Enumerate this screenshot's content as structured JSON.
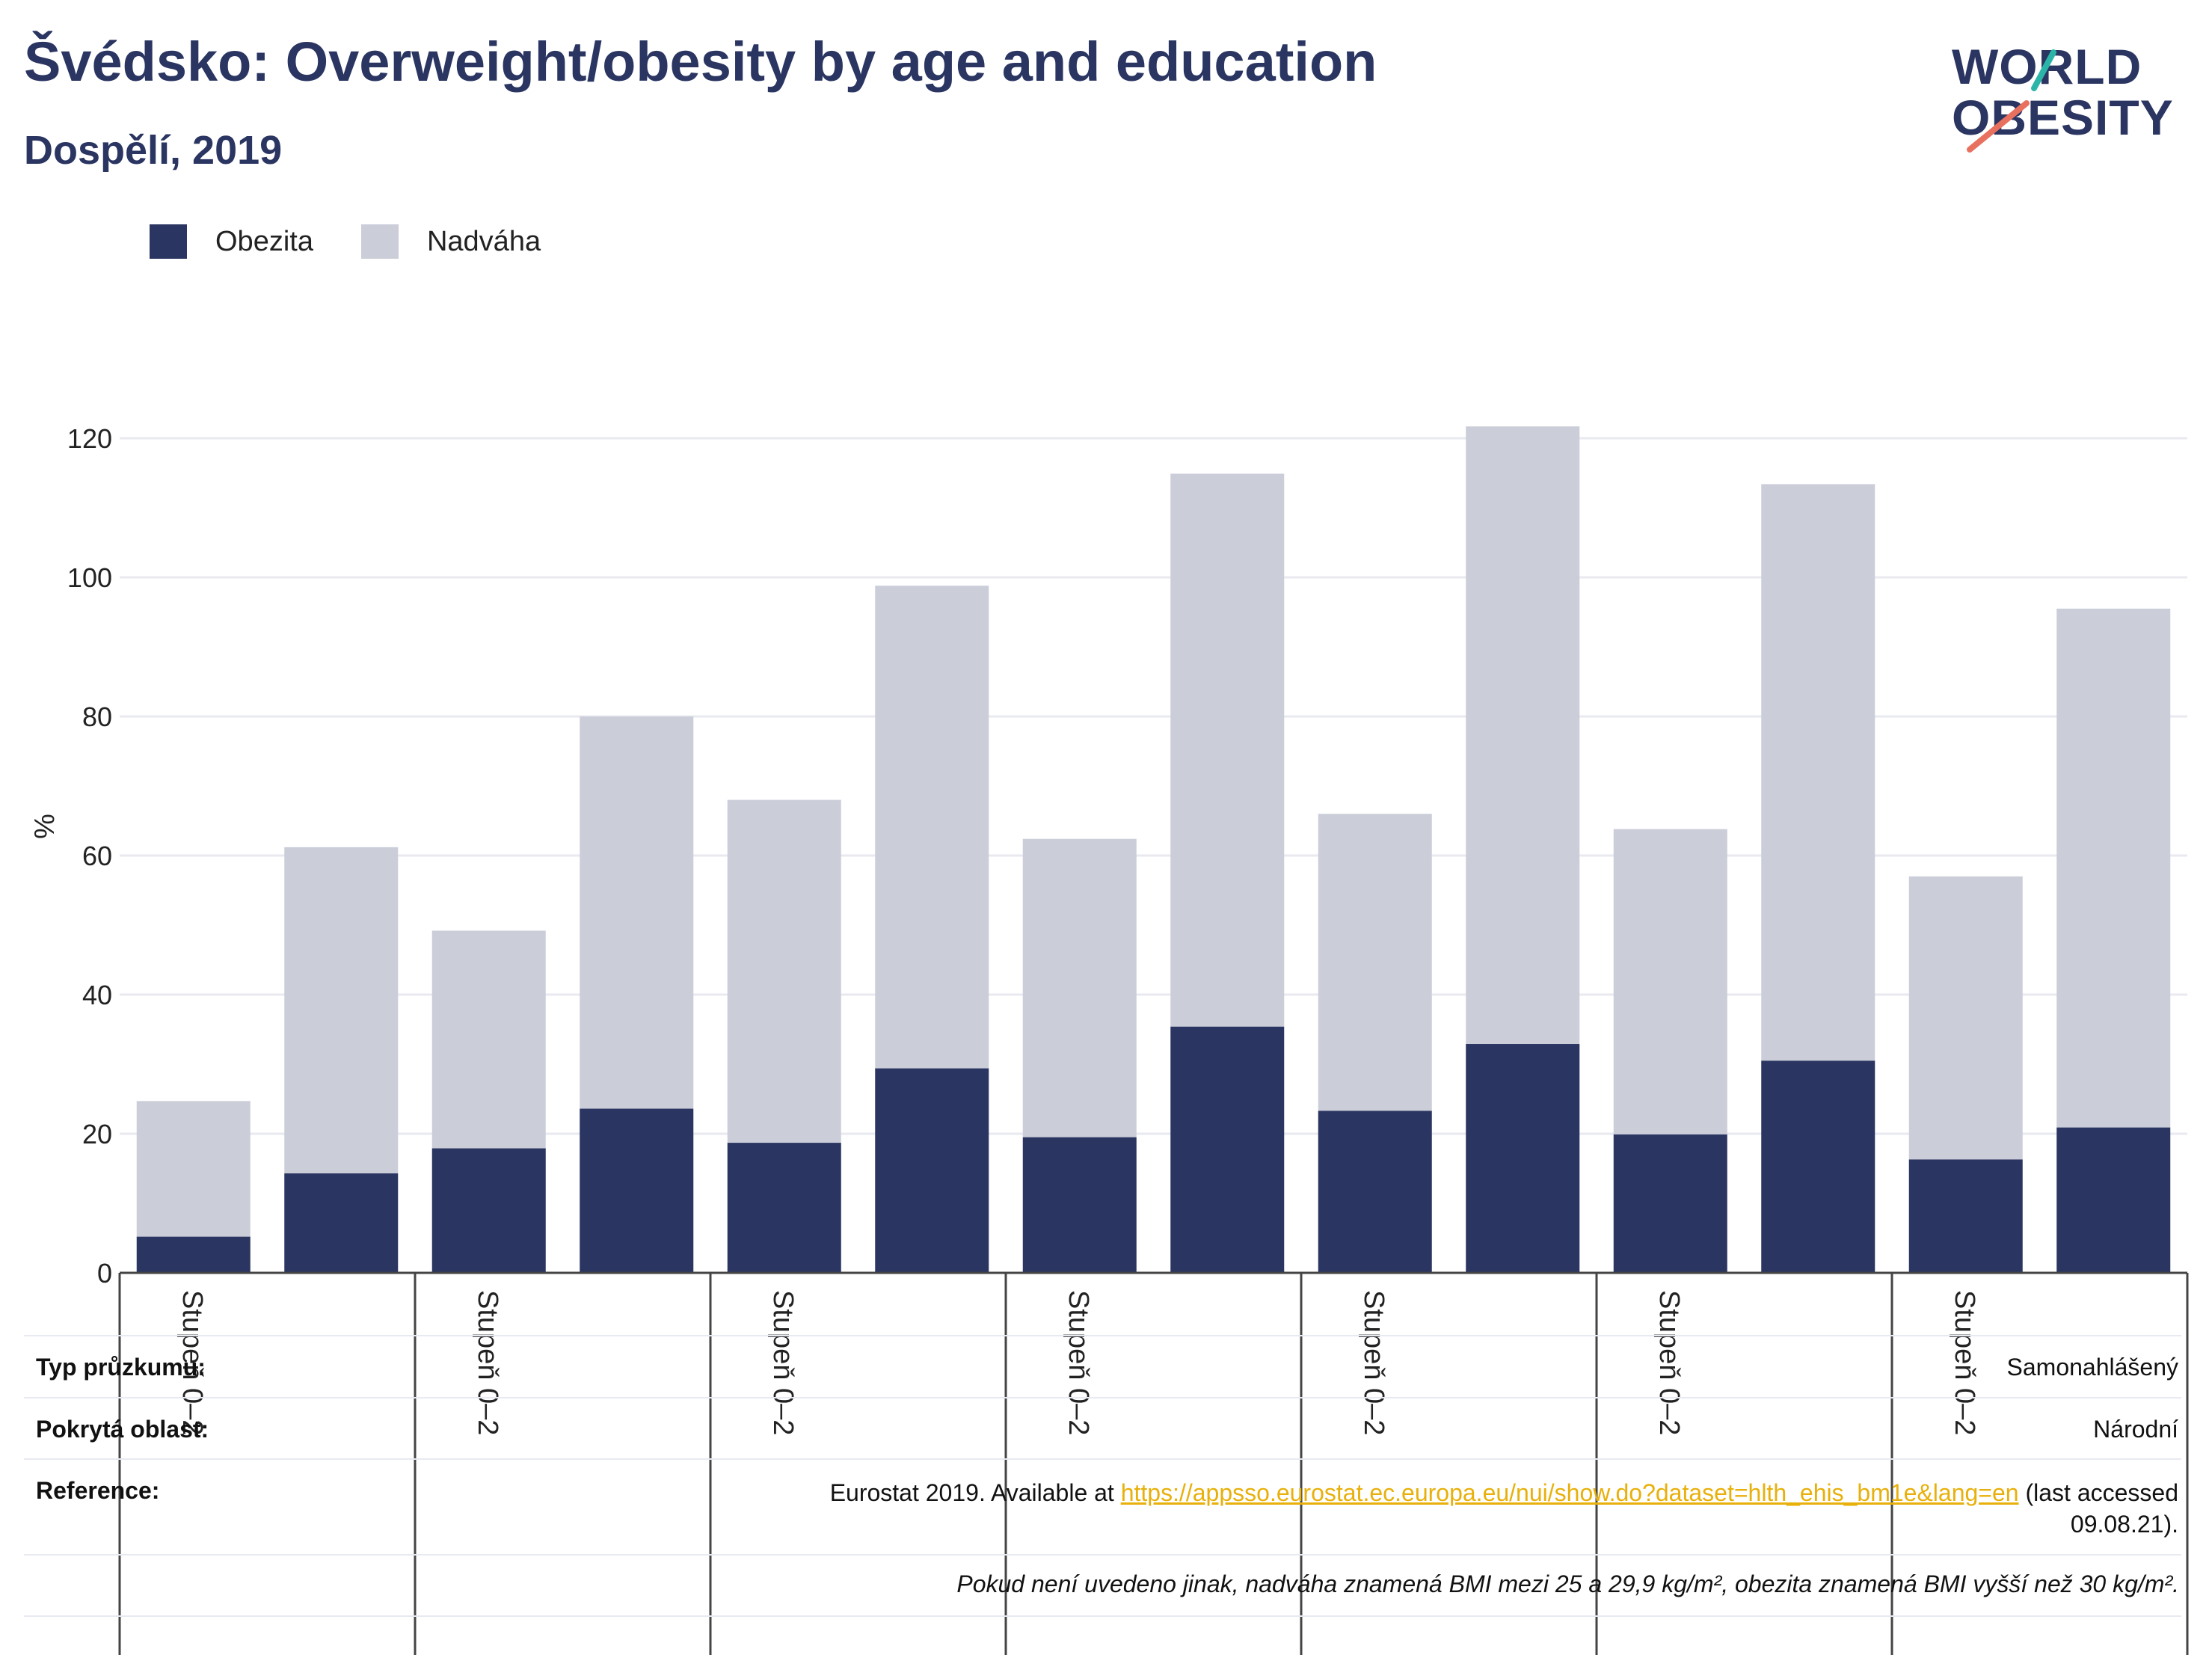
{
  "header": {
    "title": "Švédsko: Overweight/obesity by age and education",
    "subtitle": "Dospělí, 2019"
  },
  "logo": {
    "line1": "WORLD",
    "line2": "OBESITY",
    "accent_teal": "#2bb5a8",
    "accent_red": "#e8705f"
  },
  "legend": {
    "obesity_label": "Obezita",
    "overweight_label": "Nadváha"
  },
  "colors": {
    "obesity": "#2a3561",
    "overweight": "#cbcdd9",
    "text": "#2a3561",
    "link": "#e8b00b"
  },
  "chart_data": {
    "type": "bar",
    "stacked": true,
    "ylabel": "%",
    "ylim": [
      0,
      125
    ],
    "yticks": [
      0,
      20,
      40,
      60,
      80,
      100,
      120
    ],
    "grid": true,
    "legend_position": "top-left",
    "group_labels": [
      "Stupeň 0–2",
      "Stupeň 0–2",
      "Stupeň 0–2",
      "Stupeň 0–2",
      "Stupeň 0–2",
      "Stupeň 0–2",
      "Stupeň 0–2"
    ],
    "series": [
      {
        "name": "Obezita",
        "values": [
          5.2,
          14.3,
          17.9,
          23.6,
          18.7,
          29.4,
          19.5,
          35.4,
          23.3,
          32.9,
          19.9,
          30.5,
          16.3,
          20.9
        ]
      },
      {
        "name": "Nadváha",
        "values": [
          19.5,
          46.9,
          31.3,
          56.4,
          49.3,
          69.4,
          42.9,
          79.5,
          42.7,
          88.8,
          43.9,
          82.9,
          40.7,
          74.6
        ]
      }
    ]
  },
  "info": {
    "survey_type_label": "Typ průzkumu:",
    "survey_type_value": "Samonahlášený",
    "area_label": "Pokrytá oblast:",
    "area_value": "Národní",
    "reference_label": "Reference:",
    "reference_prefix": "Eurostat 2019. Available at ",
    "reference_link": "https://appsso.eurostat.ec.europa.eu/nui/show.do?dataset=hlth_ehis_bm1e&lang=en",
    "reference_suffix": " (last accessed",
    "reference_date": "09.08.21).",
    "note": "Pokud není uvedeno jinak, nadváha znamená BMI mezi 25 a 29,9 kg/m², obezita znamená BMI vyšší než 30 kg/m²."
  }
}
